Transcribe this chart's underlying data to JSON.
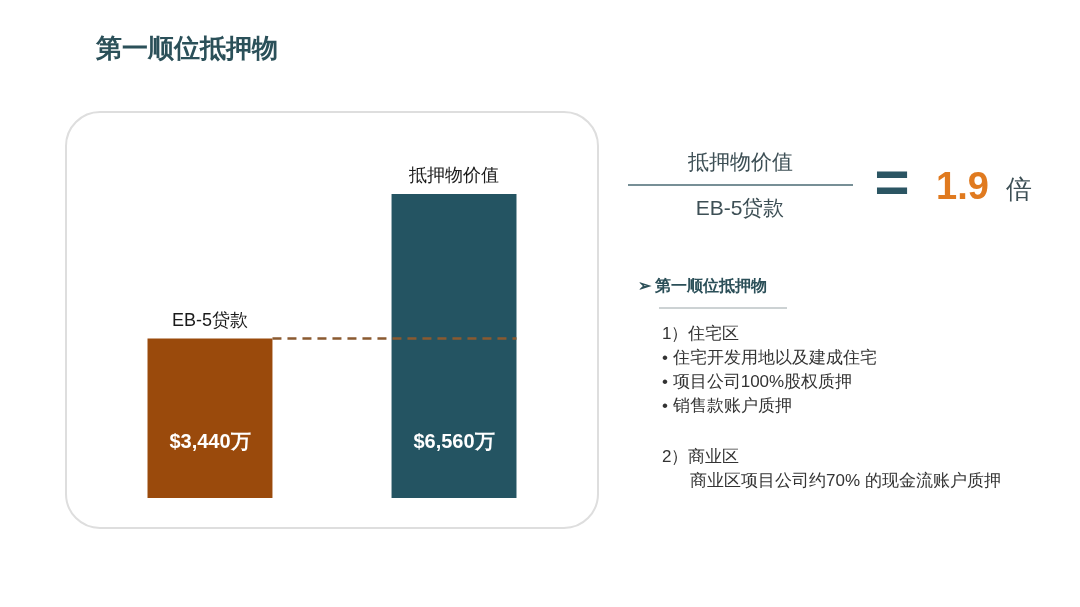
{
  "chart_data": {
    "type": "bar",
    "title": "第一顺位抵押物",
    "categories": [
      "EB-5贷款",
      "抵押物价值"
    ],
    "values": [
      3440,
      6560
    ],
    "colors": [
      "#9a4a0c",
      "#245462"
    ],
    "value_labels": [
      "$3,440万",
      "$6,560万"
    ],
    "ref_lines": [
      {
        "axis": "y",
        "value": 3440,
        "color": "#8a5a30",
        "line_style": "dashed"
      }
    ],
    "annotations": [
      "抵押物价值",
      "EB-5贷款",
      "=",
      "1.9",
      "倍",
      "➢ 第一顺位抵押物",
      "1）住宅区",
      "• 住宅开发用地以及建成住宅",
      "• 项目公司100%股权质押",
      "• 销售款账户质押",
      "2）商业区",
      "商业区项目公司约70% 的现金流账户质押"
    ]
  }
}
